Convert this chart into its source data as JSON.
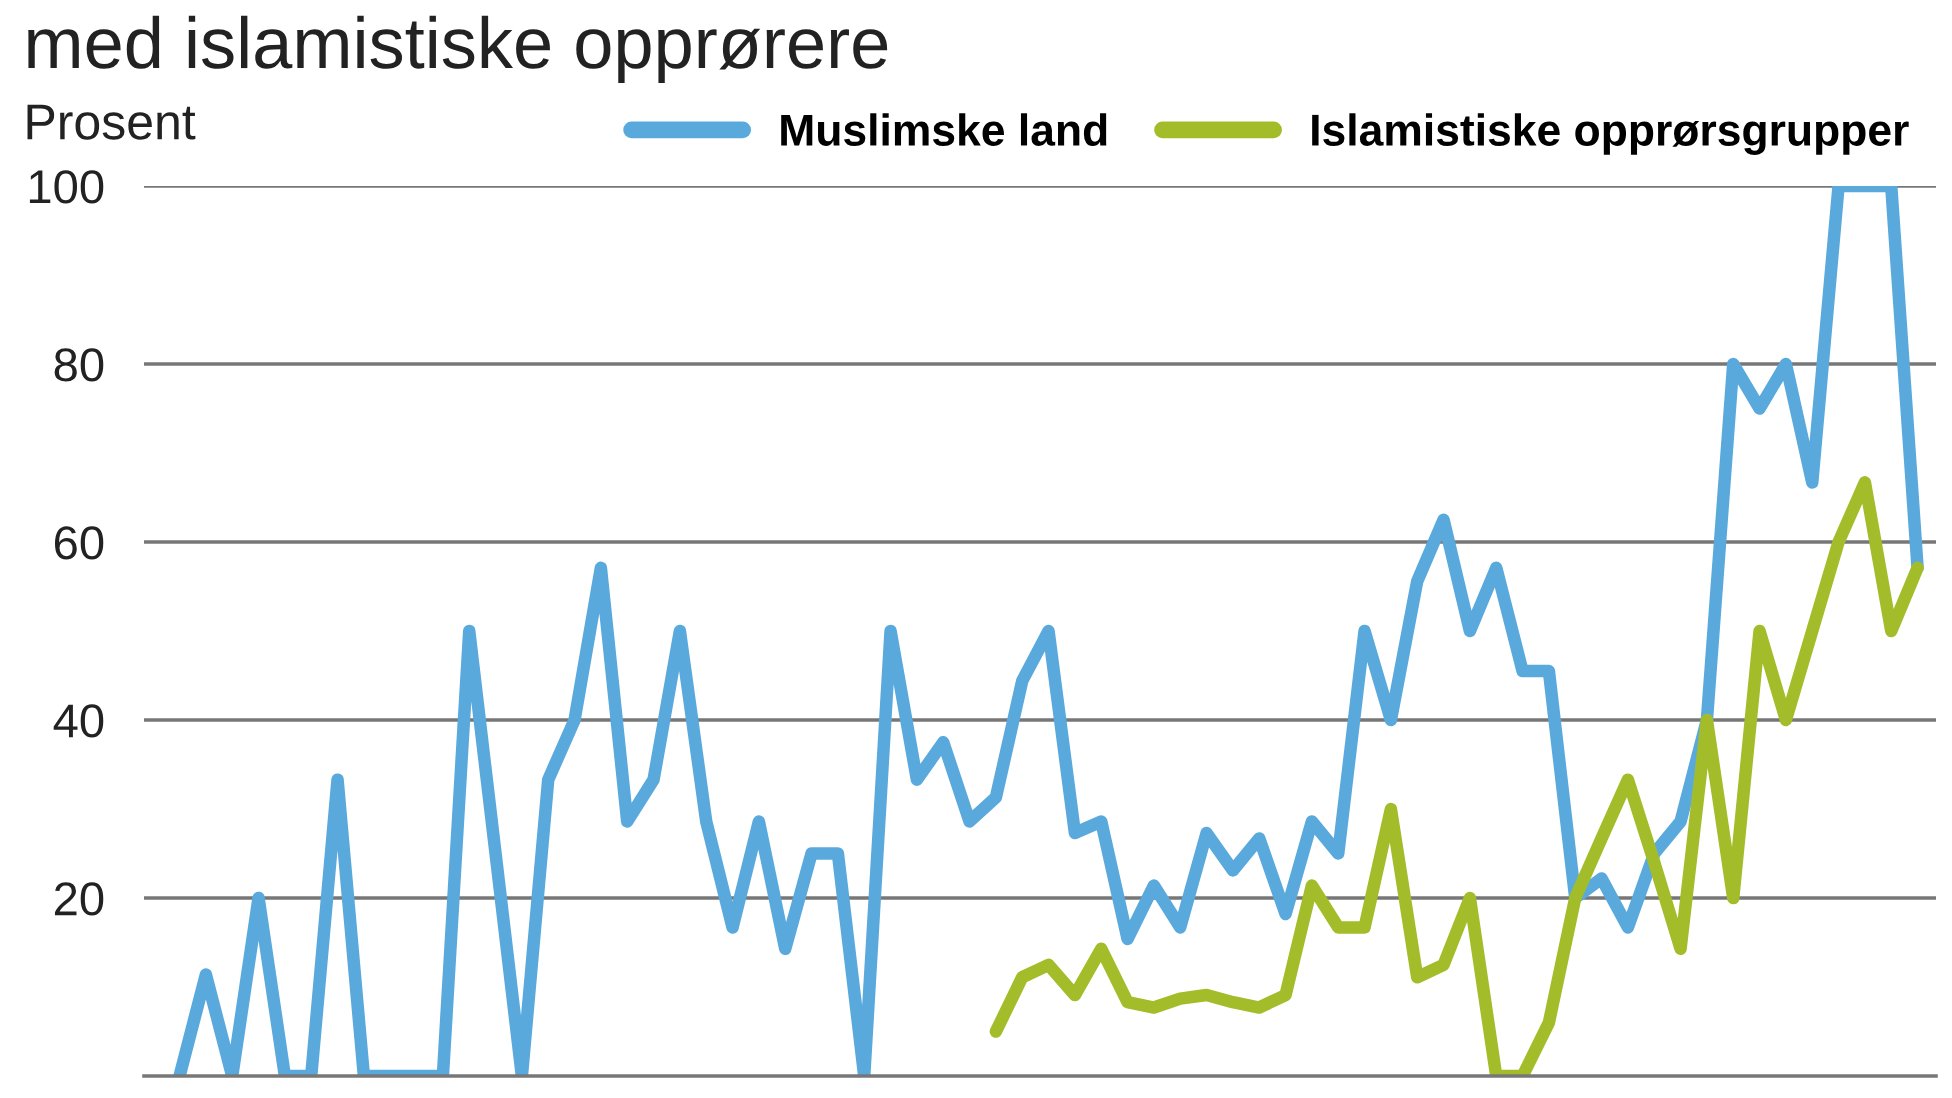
{
  "chart_data": {
    "type": "line",
    "title": "med islamistiske opprørere",
    "ylabel": "Prosent",
    "categories": [
      null,
      null,
      null,
      null,
      null,
      null,
      null,
      null,
      null,
      null,
      null,
      null,
      null,
      null,
      null,
      null,
      null,
      null,
      null,
      null,
      null,
      null,
      null,
      null,
      null,
      null,
      null,
      null,
      null,
      null,
      null,
      null,
      null,
      null,
      null,
      null,
      null,
      null,
      null,
      null,
      null,
      null,
      null,
      null,
      null,
      null,
      null,
      null,
      null,
      null,
      null,
      null,
      null,
      null,
      null,
      null,
      null,
      null,
      null,
      null,
      null,
      null,
      null,
      null,
      null,
      null,
      null
    ],
    "series": [
      {
        "name": "Muslimske land",
        "color": "#5aa9dd",
        "values": [
          0,
          11.4,
          0,
          20,
          0,
          0,
          33.3,
          0,
          0,
          0,
          0,
          50,
          25,
          0,
          33.3,
          40,
          57.1,
          28.6,
          33.3,
          50,
          28.6,
          16.7,
          28.6,
          14.3,
          25,
          25,
          0,
          50,
          33.3,
          37.5,
          28.6,
          31.3,
          44.4,
          50,
          27.3,
          28.6,
          15.4,
          21.4,
          16.7,
          27.3,
          23.1,
          26.7,
          18.2,
          28.6,
          25,
          50,
          40,
          55.6,
          62.5,
          50,
          57.1,
          45.5,
          45.5,
          20,
          22.2,
          16.7,
          25,
          28.6,
          40,
          80,
          75,
          80,
          66.7,
          100,
          100,
          100,
          57.1
        ]
      },
      {
        "name": "Islamistiske opprørsgrupper",
        "color": "#a3bd2a",
        "values": [
          null,
          null,
          null,
          null,
          null,
          null,
          null,
          null,
          null,
          null,
          null,
          null,
          null,
          null,
          null,
          null,
          null,
          null,
          null,
          null,
          null,
          null,
          null,
          null,
          null,
          null,
          null,
          null,
          null,
          null,
          null,
          5,
          11.1,
          12.5,
          9.1,
          14.3,
          8.3,
          7.7,
          8.7,
          9.1,
          8.3,
          7.7,
          9.1,
          21.4,
          16.7,
          16.7,
          30,
          11.1,
          12.5,
          20,
          0,
          0,
          6,
          20,
          26.7,
          33.3,
          24,
          14.3,
          40,
          20,
          50,
          40,
          50,
          60,
          66.7,
          50,
          57.1
        ]
      }
    ],
    "ylim": [
      0,
      100
    ],
    "yticks": [
      20,
      40,
      60,
      80,
      100
    ],
    "grid": "y",
    "legend": "top right",
    "marker": "none",
    "line_style": "solid"
  }
}
